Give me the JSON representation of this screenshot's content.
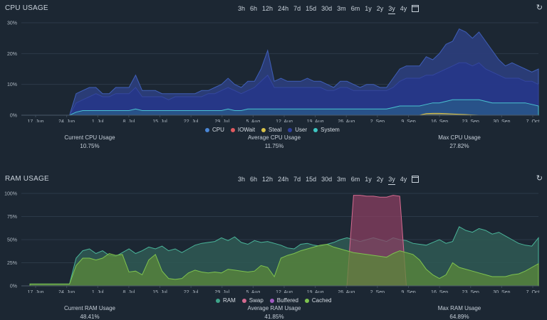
{
  "range_labels": [
    "3h",
    "6h",
    "12h",
    "24h",
    "7d",
    "15d",
    "30d",
    "3m",
    "6m",
    "1y",
    "2y",
    "3y",
    "4y"
  ],
  "active_range": "3y",
  "cpu": {
    "title": "CPU USAGE",
    "refresh_icon": "refresh-icon",
    "legend": [
      {
        "label": "CPU",
        "color": "#4a86d6"
      },
      {
        "label": "IOWait",
        "color": "#e05a5f"
      },
      {
        "label": "Steal",
        "color": "#d9c24a"
      },
      {
        "label": "User",
        "color": "#2f3f9e"
      },
      {
        "label": "System",
        "color": "#3ec6c2"
      }
    ],
    "stats": [
      {
        "label": "Current CPU Usage",
        "value": "10.75%"
      },
      {
        "label": "Average CPU Usage",
        "value": "11.75%"
      },
      {
        "label": "Max CPU Usage",
        "value": "27.82%"
      }
    ],
    "chart_data": {
      "type": "area",
      "title": "CPU USAGE",
      "x_ticks": [
        "17. Jun",
        "24. Jun",
        "1. Jul",
        "8. Jul",
        "15. Jul",
        "22. Jul",
        "29. Jul",
        "5. Aug",
        "12. Aug",
        "19. Aug",
        "26. Aug",
        "2. Sep",
        "9. Sep",
        "16. Sep",
        "23. Sep",
        "30. Sep",
        "7. Oct"
      ],
      "y_ticks": [
        "0%",
        "10%",
        "20%",
        "30%"
      ],
      "ylim": [
        0,
        30
      ],
      "series": [
        {
          "name": "CPU",
          "values": [
            0,
            0,
            0,
            0,
            0,
            0,
            0,
            7,
            8,
            9,
            9,
            7,
            7,
            9,
            9,
            9,
            13,
            8,
            8,
            8,
            7,
            7,
            7,
            7,
            7,
            7,
            8,
            8,
            9,
            10,
            12,
            10,
            9,
            11,
            11,
            15,
            21,
            11,
            12,
            11,
            11,
            11,
            12,
            11,
            11,
            10,
            9,
            11,
            11,
            10,
            9,
            10,
            10,
            9,
            9,
            12,
            15,
            16,
            16,
            16,
            19,
            18,
            20,
            23,
            24,
            28,
            27,
            25,
            27,
            24,
            21,
            18,
            16,
            17,
            16,
            15,
            14,
            15
          ]
        },
        {
          "name": "User",
          "values": [
            0,
            0,
            0,
            0,
            0,
            0,
            0,
            4,
            5,
            6,
            7,
            6,
            6,
            7,
            7,
            7,
            9,
            6,
            6,
            6,
            6,
            5,
            6,
            6,
            6,
            6,
            6,
            7,
            7,
            8,
            9,
            8,
            7,
            8,
            9,
            11,
            13,
            9,
            9,
            9,
            9,
            9,
            9,
            9,
            9,
            8,
            8,
            9,
            9,
            8,
            8,
            8,
            8,
            8,
            8,
            9,
            11,
            12,
            12,
            12,
            13,
            13,
            14,
            15,
            16,
            17,
            17,
            16,
            17,
            15,
            14,
            13,
            12,
            12,
            12,
            11,
            11,
            10
          ]
        },
        {
          "name": "System",
          "values": [
            0,
            0,
            0,
            0,
            0,
            0,
            0,
            1,
            1.5,
            1.5,
            1.5,
            1.5,
            1.5,
            1.5,
            1.5,
            1.5,
            2,
            1.5,
            1.5,
            1.5,
            1.5,
            1.5,
            1.5,
            1.5,
            1.5,
            1.5,
            1.5,
            1.5,
            1.5,
            1.5,
            2,
            1.5,
            1.5,
            2,
            2,
            2,
            2,
            2,
            2,
            2,
            2,
            2,
            2,
            2,
            2,
            2,
            2,
            2,
            2,
            2,
            2,
            2,
            2,
            2,
            2,
            2.5,
            3,
            3,
            3,
            3,
            3.5,
            4,
            4,
            4.5,
            5,
            5,
            5,
            5,
            5,
            4.5,
            4,
            4,
            4,
            4,
            4,
            4,
            3.5,
            3
          ]
        },
        {
          "name": "Steal",
          "values": [
            0,
            0,
            0,
            0,
            0,
            0,
            0,
            0,
            0,
            0,
            0,
            0,
            0,
            0,
            0,
            0,
            0,
            0,
            0,
            0,
            0,
            0,
            0,
            0,
            0,
            0,
            0,
            0,
            0,
            0,
            0,
            0,
            0,
            0,
            0,
            0,
            0,
            0,
            0,
            0,
            0,
            0,
            0,
            0,
            0,
            0,
            0,
            0,
            0,
            0,
            0,
            0,
            0,
            0,
            0,
            0,
            0,
            0,
            0,
            0,
            0.5,
            0.6,
            0.6,
            0.5,
            0.4,
            0.3,
            0.2,
            0.1,
            0,
            0,
            0,
            0,
            0,
            0,
            0,
            0,
            0,
            0
          ]
        }
      ]
    }
  },
  "ram": {
    "title": "RAM USAGE",
    "refresh_icon": "refresh-icon",
    "legend": [
      {
        "label": "RAM",
        "color": "#3ea58a"
      },
      {
        "label": "Swap",
        "color": "#d46a8f"
      },
      {
        "label": "Buffered",
        "color": "#a25bc2"
      },
      {
        "label": "Cached",
        "color": "#7ec34f"
      }
    ],
    "stats": [
      {
        "label": "Current RAM Usage",
        "value": "48.41%"
      },
      {
        "label": "Average RAM Usage",
        "value": "41.85%"
      },
      {
        "label": "Max RAM Usage",
        "value": "64.89%"
      }
    ],
    "chart_data": {
      "type": "area",
      "title": "RAM USAGE",
      "x_ticks": [
        "17. Jun",
        "24. Jun",
        "1. Jul",
        "8. Jul",
        "15. Jul",
        "22. Jul",
        "29. Jul",
        "5. Aug",
        "12. Aug",
        "19. Aug",
        "26. Aug",
        "2. Sep",
        "9. Sep",
        "16. Sep",
        "23. Sep",
        "30. Sep",
        "7. Oct"
      ],
      "y_ticks": [
        "0%",
        "25%",
        "50%",
        "75%",
        "100%"
      ],
      "ylim": [
        0,
        100
      ],
      "series": [
        {
          "name": "RAM",
          "values": [
            2,
            2,
            2,
            2,
            2,
            2,
            2,
            30,
            38,
            40,
            35,
            38,
            33,
            32,
            36,
            40,
            35,
            38,
            42,
            40,
            43,
            38,
            40,
            36,
            40,
            44,
            46,
            47,
            48,
            52,
            49,
            53,
            47,
            45,
            49,
            47,
            48,
            46,
            44,
            41,
            40,
            45,
            46,
            44,
            43,
            45,
            47,
            50,
            52,
            50,
            48,
            50,
            52,
            50,
            48,
            52,
            50,
            49,
            46,
            45,
            44,
            47,
            50,
            46,
            48,
            64,
            60,
            58,
            62,
            60,
            56,
            58,
            54,
            50,
            46,
            44,
            43,
            52
          ]
        },
        {
          "name": "Swap",
          "values": [
            0,
            0,
            0,
            0,
            0,
            0,
            0,
            0,
            0,
            0,
            0,
            0,
            0,
            0,
            0,
            0,
            0,
            0,
            0,
            0,
            0,
            0,
            0,
            0,
            0,
            0,
            0,
            0,
            0,
            0,
            0,
            0,
            0,
            0,
            0,
            0,
            0,
            0,
            0,
            0,
            0,
            0,
            0,
            0,
            0,
            0,
            0,
            0,
            0,
            98,
            98,
            97,
            97,
            96,
            96,
            98,
            97,
            0,
            0,
            0,
            0,
            0,
            0,
            0,
            0,
            0,
            0,
            0,
            0,
            0,
            0,
            0,
            0,
            0,
            0,
            0,
            0,
            0
          ]
        },
        {
          "name": "Cached",
          "values": [
            2,
            2,
            2,
            2,
            2,
            2,
            2,
            22,
            30,
            30,
            28,
            30,
            35,
            33,
            34,
            15,
            16,
            12,
            28,
            34,
            16,
            8,
            7,
            8,
            14,
            17,
            15,
            14,
            15,
            14,
            18,
            17,
            16,
            15,
            16,
            22,
            20,
            10,
            30,
            33,
            35,
            38,
            40,
            42,
            44,
            45,
            42,
            40,
            38,
            36,
            35,
            34,
            33,
            32,
            31,
            35,
            38,
            36,
            34,
            28,
            18,
            12,
            8,
            12,
            25,
            20,
            18,
            16,
            14,
            12,
            10,
            10,
            10,
            12,
            13,
            16,
            20,
            24
          ]
        },
        {
          "name": "Buffered",
          "values": [
            0,
            0,
            0,
            0,
            0,
            0,
            0,
            0,
            0,
            0,
            0,
            0,
            0,
            0,
            0,
            0,
            0,
            0,
            0,
            0,
            0,
            0,
            0,
            0,
            0,
            0,
            0,
            0,
            0,
            0,
            0,
            0,
            0,
            0,
            0,
            0,
            0,
            0,
            0,
            0,
            0,
            0,
            0,
            0,
            0,
            0,
            0,
            0,
            0,
            0,
            0,
            0,
            0,
            0,
            0,
            0,
            0,
            0,
            0,
            0,
            0,
            0,
            0,
            0,
            0,
            0,
            0,
            0,
            0,
            0,
            0,
            0,
            0,
            0,
            0,
            0,
            0,
            0
          ]
        }
      ]
    }
  }
}
